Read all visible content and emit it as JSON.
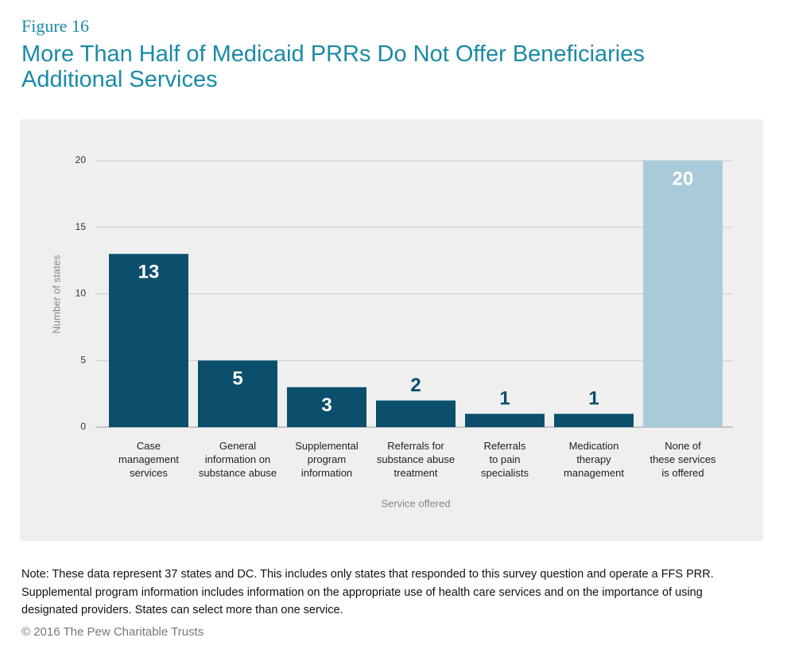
{
  "figure_label": "Figure 16",
  "chart_data": {
    "type": "bar",
    "title": "More Than Half of Medicaid PRRs Do Not Offer Beneficiaries Additional Services",
    "categories": [
      [
        "Case",
        "management",
        "services"
      ],
      [
        "General",
        "information on",
        "substance abuse"
      ],
      [
        "Supplemental",
        "program",
        "information"
      ],
      [
        "Referrals for",
        "substance abuse",
        "treatment"
      ],
      [
        "Referrals",
        "to pain",
        "specialists"
      ],
      [
        "Medication",
        "therapy",
        "management"
      ],
      [
        "None of",
        "these services",
        "is offered"
      ]
    ],
    "values": [
      13,
      5,
      3,
      2,
      1,
      1,
      20
    ],
    "colors": [
      "#0b4f6c",
      "#0b4f6c",
      "#0b4f6c",
      "#0b4f6c",
      "#0b4f6c",
      "#0b4f6c",
      "#a9cbd9"
    ],
    "ylim": [
      0,
      20
    ],
    "yticks": [
      0,
      5,
      10,
      15,
      20
    ],
    "grid": true,
    "y_label": "Number of states",
    "x_label": "Service offered"
  },
  "note": "Note: These data represent 37 states and DC. This includes only states that responded to this survey question and operate a FFS PRR. Supplemental program information includes information on the appropriate use of health care services and on the importance of using designated providers. States can select more than one service.",
  "copyright": "© 2016 The Pew Charitable Trusts"
}
